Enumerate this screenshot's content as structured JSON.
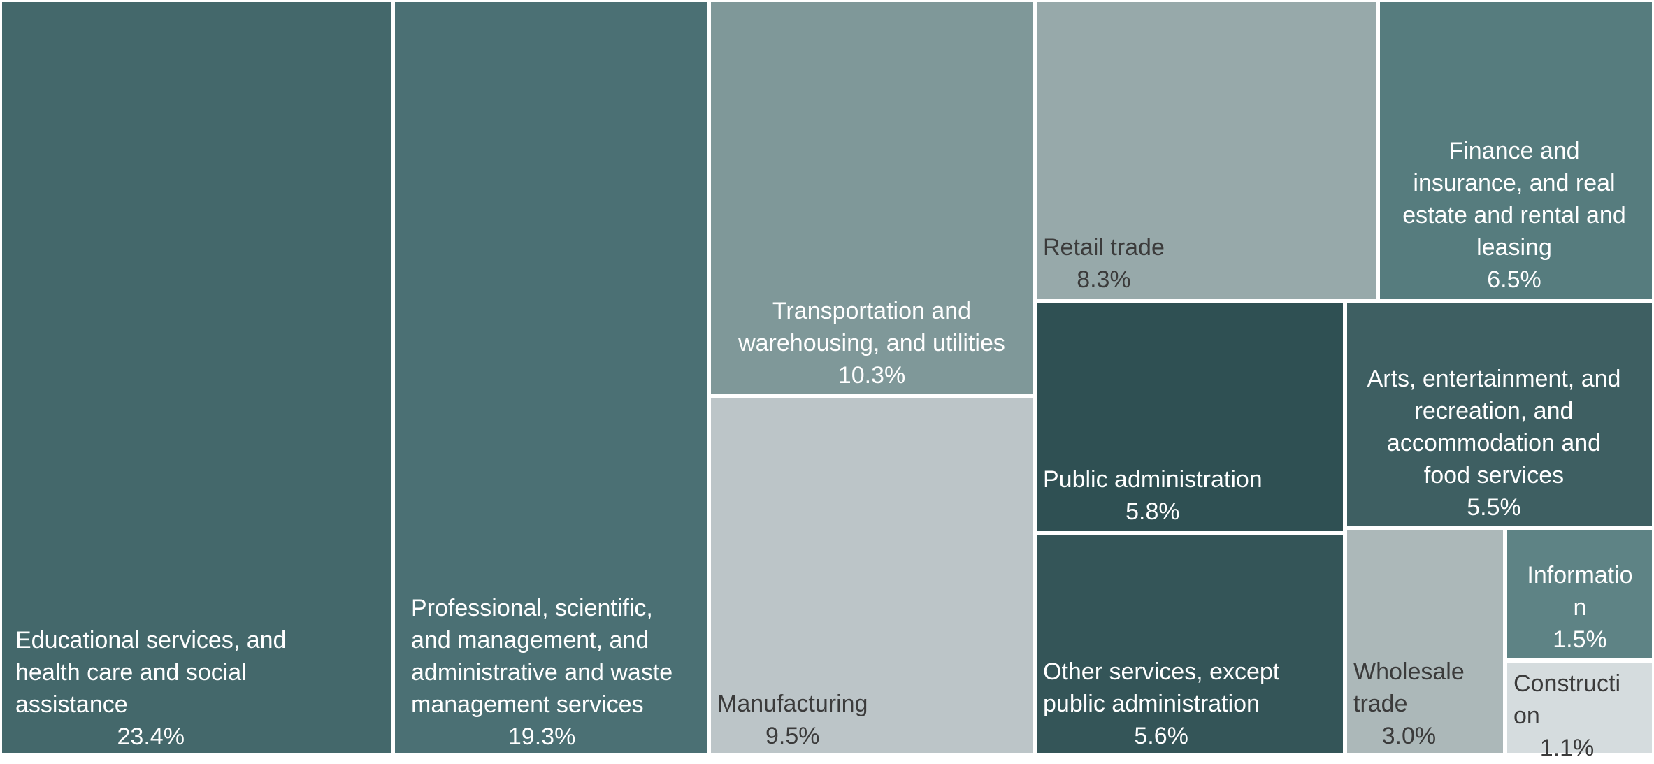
{
  "chart_data": {
    "type": "treemap",
    "title": "",
    "unit": "%",
    "items": [
      {
        "name": "Educational services, and health care and social assistance",
        "label_lines": [
          "Educational services, and",
          "health care and social",
          "assistance"
        ],
        "value": 23.4,
        "value_label": "23.4%",
        "color": "#44686b",
        "text_color": "#ffffff"
      },
      {
        "name": "Professional, scientific, and management, and administrative and waste management services",
        "label_lines": [
          "Professional, scientific,",
          "and management, and",
          "administrative and waste",
          "management services"
        ],
        "value": 19.3,
        "value_label": "19.3%",
        "color": "#4b7074",
        "text_color": "#ffffff"
      },
      {
        "name": "Transportation and warehousing, and utilities",
        "label_lines": [
          "Transportation and",
          "warehousing, and utilities"
        ],
        "value": 10.3,
        "value_label": "10.3%",
        "color": "#7f9899",
        "text_color": "#ffffff"
      },
      {
        "name": "Manufacturing",
        "label_lines": [
          "Manufacturing"
        ],
        "value": 9.5,
        "value_label": "9.5%",
        "color": "#bcc5c8",
        "text_color": "#3b3b3b"
      },
      {
        "name": "Retail trade",
        "label_lines": [
          "Retail trade"
        ],
        "value": 8.3,
        "value_label": "8.3%",
        "color": "#97a9aa",
        "text_color": "#3b3b3b"
      },
      {
        "name": "Finance and insurance, and real estate and rental and leasing",
        "label_lines": [
          "Finance and",
          "insurance, and real",
          "estate and rental and",
          "leasing"
        ],
        "value": 6.5,
        "value_label": "6.5%",
        "color": "#567c7e",
        "text_color": "#ffffff"
      },
      {
        "name": "Public administration",
        "label_lines": [
          "Public administration"
        ],
        "value": 5.8,
        "value_label": "5.8%",
        "color": "#2f5053",
        "text_color": "#ffffff"
      },
      {
        "name": "Other services, except public administration",
        "label_lines": [
          "Other services, except",
          "public administration"
        ],
        "value": 5.6,
        "value_label": "5.6%",
        "color": "#345558",
        "text_color": "#ffffff"
      },
      {
        "name": "Arts, entertainment, and recreation, and accommodation and food services",
        "label_lines": [
          "Arts, entertainment, and",
          "recreation, and",
          "accommodation and",
          "food services"
        ],
        "value": 5.5,
        "value_label": "5.5%",
        "color": "#3e5f62",
        "text_color": "#ffffff"
      },
      {
        "name": "Wholesale trade",
        "label_lines": [
          "Wholesale",
          "trade"
        ],
        "value": 3.0,
        "value_label": "3.0%",
        "color": "#acb8b9",
        "text_color": "#3b3b3b"
      },
      {
        "name": "Information",
        "label_lines": [
          "Informatio",
          "n"
        ],
        "value": 1.5,
        "value_label": "1.5%",
        "color": "#5e8385",
        "text_color": "#ffffff"
      },
      {
        "name": "Construction",
        "label_lines": [
          "Constructi",
          "on"
        ],
        "value": 1.1,
        "value_label": "1.1%",
        "color": "#d5dcde",
        "text_color": "#3b3b3b"
      }
    ]
  }
}
